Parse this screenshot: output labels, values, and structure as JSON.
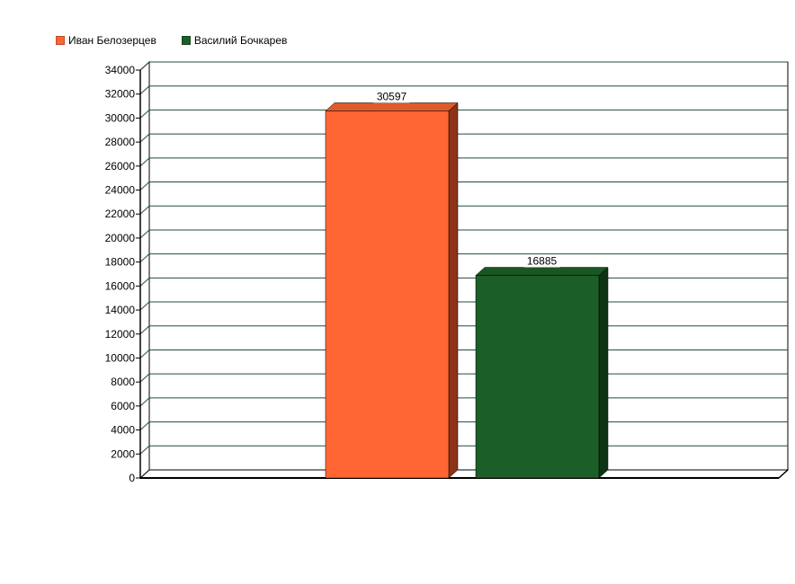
{
  "colors": {
    "series1": "#ff6633",
    "series1_top": "#e05a2a",
    "series1_side": "#8c3318",
    "series2": "#1c5e28",
    "series2_top": "#1a5524",
    "series2_side": "#0e3414",
    "grid": "#1f4e3a"
  },
  "chart_data": {
    "type": "bar",
    "title": "",
    "xlabel": "",
    "ylabel": "",
    "ylim": [
      0,
      34000
    ],
    "ytick_step": 2000,
    "grid": true,
    "legend_position": "top-left",
    "series": [
      {
        "name": "Иван Белозерцев",
        "values": [
          30597
        ],
        "label": "30597"
      },
      {
        "name": "Василий Бочкарев",
        "values": [
          16885
        ],
        "label": "16885"
      }
    ]
  }
}
